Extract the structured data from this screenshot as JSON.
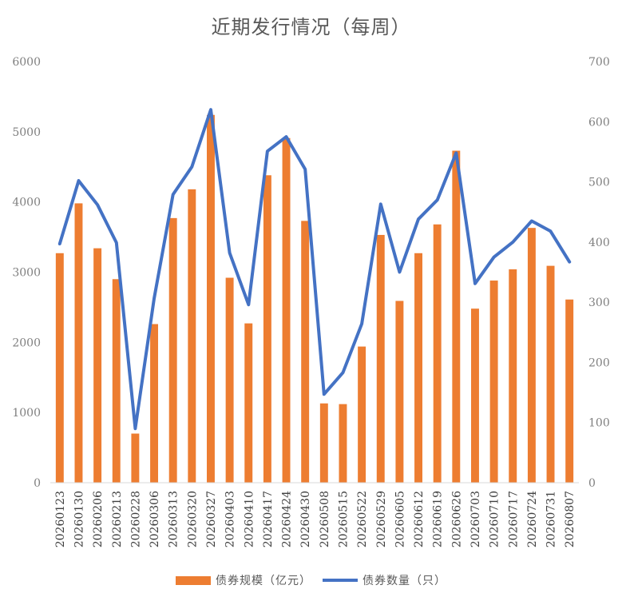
{
  "chart_data": {
    "type": "bar",
    "title": "近期发行情况（每周）",
    "categories": [
      "20260123",
      "20260130",
      "20260206",
      "20260213",
      "20260228",
      "20260306",
      "20260313",
      "20260320",
      "20260327",
      "20260403",
      "20260410",
      "20260417",
      "20260424",
      "20260430",
      "20260508",
      "20260515",
      "20260522",
      "20260529",
      "20260605",
      "20260612",
      "20260619",
      "20260626",
      "20260703",
      "20260710",
      "20260717",
      "20260724",
      "20260731",
      "20260807"
    ],
    "series": [
      {
        "name": "债券规模（亿元）",
        "type": "bar",
        "axis": "left",
        "color": "#ED7D31",
        "values": [
          3270,
          3980,
          3340,
          2900,
          700,
          2260,
          3770,
          4180,
          5240,
          2920,
          2270,
          4380,
          4910,
          3730,
          1130,
          1120,
          1940,
          3530,
          2590,
          3270,
          3680,
          4730,
          2480,
          2880,
          3040,
          3630,
          3090,
          2610
        ]
      },
      {
        "name": "债券数量（只）",
        "type": "line",
        "axis": "right",
        "color": "#4472C4",
        "values": [
          397,
          502,
          462,
          399,
          90,
          306,
          479,
          525,
          620,
          382,
          296,
          551,
          575,
          521,
          147,
          183,
          264,
          463,
          350,
          438,
          470,
          548,
          331,
          375,
          400,
          435,
          418,
          367
        ]
      }
    ],
    "yleft": {
      "lim": [
        0,
        6000
      ],
      "ticks": [
        "0",
        "1000",
        "2000",
        "3000",
        "4000",
        "5000",
        "6000"
      ]
    },
    "yright": {
      "lim": [
        0,
        700
      ],
      "ticks": [
        "0",
        "100",
        "200",
        "300",
        "400",
        "500",
        "600",
        "700"
      ]
    },
    "grid": false,
    "legend": "bottom"
  }
}
